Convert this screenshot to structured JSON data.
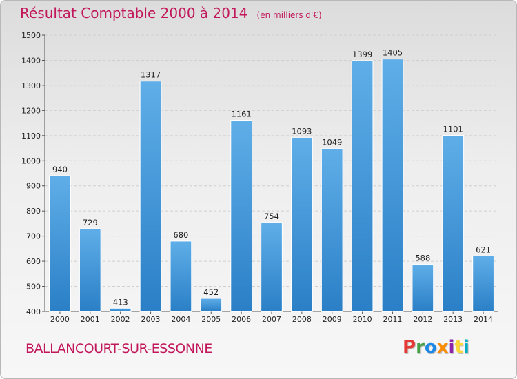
{
  "header": {
    "title": "Résultat Comptable 2000 à 2014",
    "subtitle": "(en milliers d'€)"
  },
  "footer": {
    "city": "BALLANCOURT-SUR-ESSONNE",
    "logo_letters": [
      "P",
      "r",
      "o",
      "x",
      "i",
      "t",
      "i"
    ],
    "logo_colors": [
      "#e53935",
      "#43a047",
      "#1e88e5",
      "#fb8c00",
      "#8e24aa",
      "#fdd835",
      "#00acc1"
    ]
  },
  "colors": {
    "bar_light": "#5faee8",
    "bar_dark": "#2a7fc6",
    "accent": "#c2185b"
  },
  "chart_data": {
    "type": "bar",
    "categories": [
      "2000",
      "2001",
      "2002",
      "2003",
      "2004",
      "2005",
      "2006",
      "2007",
      "2008",
      "2009",
      "2010",
      "2011",
      "2012",
      "2013",
      "2014"
    ],
    "values": [
      940,
      729,
      413,
      1317,
      680,
      452,
      1161,
      754,
      1093,
      1049,
      1399,
      1405,
      588,
      1101,
      621
    ],
    "title": "Résultat Comptable 2000 à 2014",
    "ylim": [
      400,
      1500
    ],
    "yticks": [
      400,
      500,
      600,
      700,
      800,
      900,
      1000,
      1100,
      1200,
      1300,
      1400,
      1500
    ],
    "grid": true
  }
}
